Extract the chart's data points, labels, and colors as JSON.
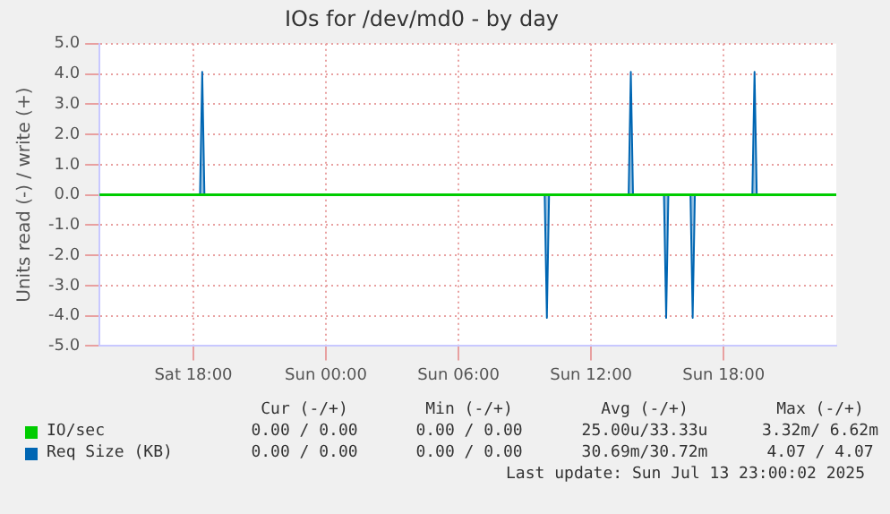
{
  "chart_data": {
    "type": "area",
    "title": "IOs for /dev/md0 - by day",
    "ylabel": "Units read (-) / write (+)",
    "xlim": [
      "2025-07-12T13:45",
      "2025-07-13T23:06"
    ],
    "xticks": [
      {
        "value": "2025-07-12T18:00",
        "label": "Sat 18:00"
      },
      {
        "value": "2025-07-13T00:00",
        "label": "Sun 00:00"
      },
      {
        "value": "2025-07-13T06:00",
        "label": "Sun 06:00"
      },
      {
        "value": "2025-07-13T12:00",
        "label": "Sun 12:00"
      },
      {
        "value": "2025-07-13T18:00",
        "label": "Sun 18:00"
      }
    ],
    "ylim": [
      -5,
      5
    ],
    "yticks": [
      {
        "value": -5,
        "label": "-5.0"
      },
      {
        "value": -4,
        "label": "-4.0"
      },
      {
        "value": -3,
        "label": "-3.0"
      },
      {
        "value": -2,
        "label": "-2.0"
      },
      {
        "value": -1,
        "label": "-1.0"
      },
      {
        "value": 0,
        "label": "0.0"
      },
      {
        "value": 1,
        "label": "1.0"
      },
      {
        "value": 2,
        "label": "2.0"
      },
      {
        "value": 3,
        "label": "3.0"
      },
      {
        "value": 4,
        "label": "4.0"
      },
      {
        "value": 5,
        "label": "5.0"
      }
    ],
    "series": [
      {
        "name": "IO/sec",
        "type": "line",
        "color": "#00cc00",
        "x": [
          "2025-07-12T13:45",
          "2025-07-13T23:06"
        ],
        "values": [
          0,
          0
        ]
      },
      {
        "name": "Req Size (KB)",
        "color": "#0066b3",
        "x": [
          "2025-07-12T13:45",
          "2025-07-12T18:18",
          "2025-07-12T18:24",
          "2025-07-12T18:30",
          "2025-07-13T09:54",
          "2025-07-13T10:00",
          "2025-07-13T10:06",
          "2025-07-13T13:42",
          "2025-07-13T13:48",
          "2025-07-13T13:54",
          "2025-07-13T15:18",
          "2025-07-13T15:24",
          "2025-07-13T15:30",
          "2025-07-13T16:30",
          "2025-07-13T16:36",
          "2025-07-13T16:42",
          "2025-07-13T19:18",
          "2025-07-13T19:24",
          "2025-07-13T19:30",
          "2025-07-13T23:06"
        ],
        "values": [
          0,
          0,
          4.07,
          0,
          0,
          -4.07,
          0,
          0,
          4.07,
          0,
          0,
          -4.07,
          0,
          0,
          -4.07,
          0,
          0,
          4.07,
          0,
          0
        ]
      }
    ],
    "grid": true,
    "legend": "bottom",
    "annotations": [
      "Cur (-/+)",
      "Min (-/+)",
      "Avg (-/+)",
      "Max (-/+)",
      "0.00 / 0.00",
      "0.00 / 0.00",
      "25.00u/33.33u",
      "3.32m/ 6.62m",
      "0.00 / 0.00",
      "0.00 / 0.00",
      "30.69m/30.72m",
      "4.07 / 4.07",
      "Last update: Sun Jul 13 23:00:02 2025"
    ]
  }
}
